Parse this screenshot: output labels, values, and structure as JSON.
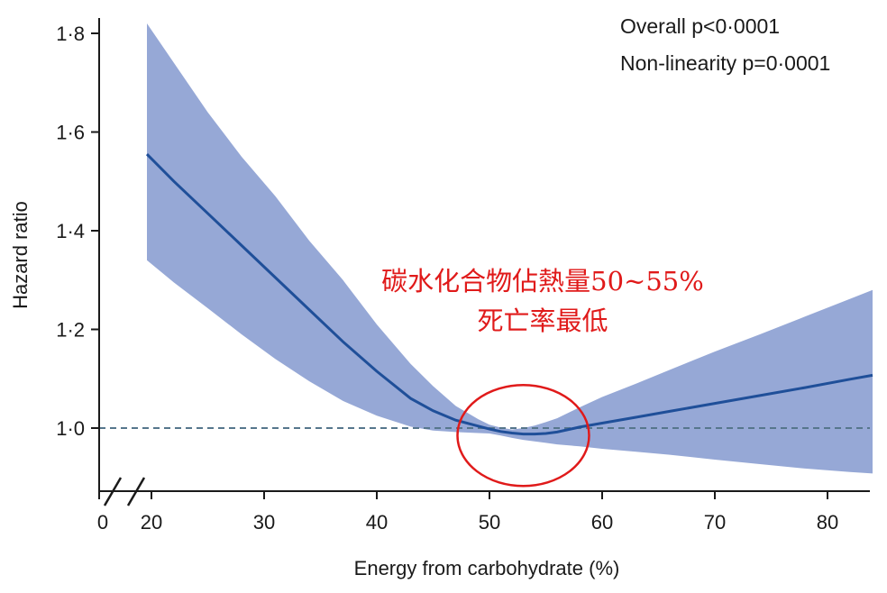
{
  "chart_data": {
    "type": "line",
    "xlabel": "Energy from carbohydrate (%)",
    "ylabel": "Hazard ratio",
    "xlim": [
      18,
      84
    ],
    "ylim": [
      0.88,
      1.86
    ],
    "x_ticks": [
      20,
      30,
      40,
      50,
      60,
      70,
      80
    ],
    "x_tick_labels": [
      "20",
      "30",
      "40",
      "50",
      "60",
      "70",
      "80"
    ],
    "x_origin_label": "0",
    "y_ticks": [
      1.0,
      1.2,
      1.4,
      1.6,
      1.8
    ],
    "y_tick_labels": [
      "1·0",
      "1·2",
      "1·4",
      "1·6",
      "1·8"
    ],
    "reference_line": 1.0,
    "stats": [
      "Overall p<0·0001",
      "Non-linearity p=0·0001"
    ],
    "series": [
      {
        "x": [
          19.6,
          22,
          25,
          28,
          31,
          34,
          37,
          40,
          43,
          45,
          47,
          49,
          50,
          51,
          52,
          53,
          54,
          55,
          56,
          58,
          60,
          63,
          66,
          70,
          74,
          78,
          82,
          84
        ],
        "y": [
          1.555,
          1.5,
          1.435,
          1.37,
          1.305,
          1.24,
          1.175,
          1.115,
          1.06,
          1.035,
          1.016,
          1.004,
          0.998,
          0.993,
          0.99,
          0.988,
          0.988,
          0.989,
          0.992,
          1.002,
          1.01,
          1.022,
          1.034,
          1.05,
          1.066,
          1.082,
          1.099,
          1.107
        ],
        "lower": [
          1.34,
          1.295,
          1.243,
          1.19,
          1.14,
          1.095,
          1.055,
          1.025,
          1.003,
          0.995,
          0.992,
          0.99,
          0.989,
          0.985,
          0.98,
          0.976,
          0.973,
          0.97,
          0.967,
          0.963,
          0.958,
          0.952,
          0.946,
          0.936,
          0.927,
          0.918,
          0.911,
          0.908
        ],
        "upper": [
          1.82,
          1.74,
          1.64,
          1.55,
          1.47,
          1.38,
          1.3,
          1.21,
          1.13,
          1.085,
          1.045,
          1.018,
          1.007,
          1.001,
          0.997,
          1.0,
          1.005,
          1.012,
          1.02,
          1.042,
          1.063,
          1.09,
          1.118,
          1.155,
          1.19,
          1.226,
          1.262,
          1.28
        ]
      }
    ],
    "annotations": {
      "line1": "碳水化合物佔熱量50~55%",
      "line2": "死亡率最低",
      "highlight_x": 53,
      "highlight_y": 0.985
    },
    "colors": {
      "line": "#1f4f99",
      "band": "#96a8d6",
      "reference": "#56768c",
      "annotation": "#e01a1a",
      "axis": "#1a1a1a"
    }
  }
}
